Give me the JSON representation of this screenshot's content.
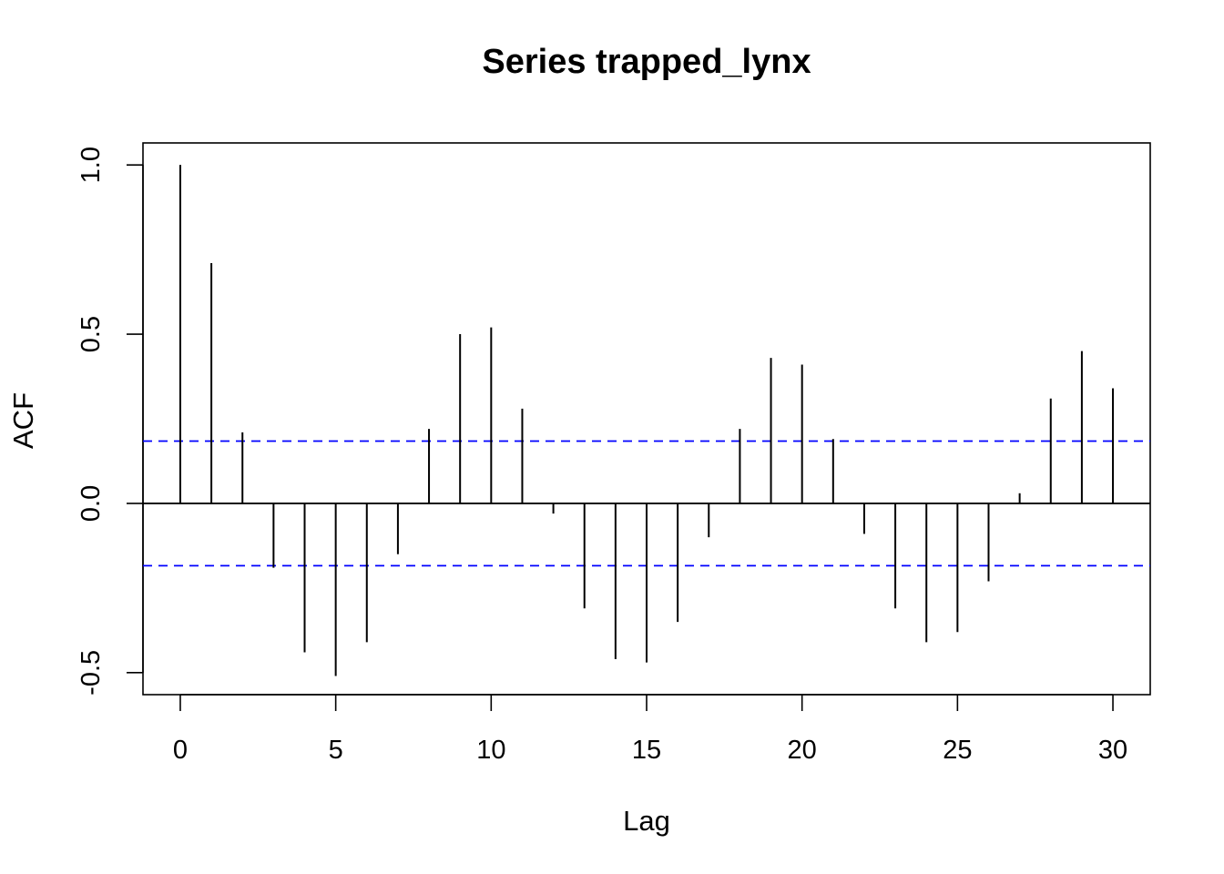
{
  "chart_data": {
    "type": "bar",
    "title": "Series  trapped_lynx",
    "xlabel": "Lag",
    "ylabel": "ACF",
    "xlim": [
      -1.2,
      31.2
    ],
    "ylim": [
      -0.565,
      1.065
    ],
    "x_ticks": [
      0,
      5,
      10,
      15,
      20,
      25,
      30
    ],
    "x_tick_labels": [
      "0",
      "5",
      "10",
      "15",
      "20",
      "25",
      "30"
    ],
    "y_ticks": [
      -0.5,
      0.0,
      0.5,
      1.0
    ],
    "y_tick_labels": [
      "-0.5",
      "0.0",
      "0.5",
      "1.0"
    ],
    "lags": [
      0,
      1,
      2,
      3,
      4,
      5,
      6,
      7,
      8,
      9,
      10,
      11,
      12,
      13,
      14,
      15,
      16,
      17,
      18,
      19,
      20,
      21,
      22,
      23,
      24,
      25,
      26,
      27,
      28,
      29,
      30
    ],
    "acf": [
      1.0,
      0.71,
      0.21,
      -0.19,
      -0.44,
      -0.51,
      -0.41,
      -0.15,
      0.22,
      0.5,
      0.52,
      0.28,
      -0.03,
      -0.31,
      -0.46,
      -0.47,
      -0.35,
      -0.1,
      0.22,
      0.43,
      0.41,
      0.19,
      -0.09,
      -0.31,
      -0.41,
      -0.38,
      -0.23,
      0.03,
      0.31,
      0.45,
      0.34
    ],
    "confidence_bound": 0.184,
    "confidence_color": "#0000ff",
    "zero_line": true,
    "grid": false
  }
}
